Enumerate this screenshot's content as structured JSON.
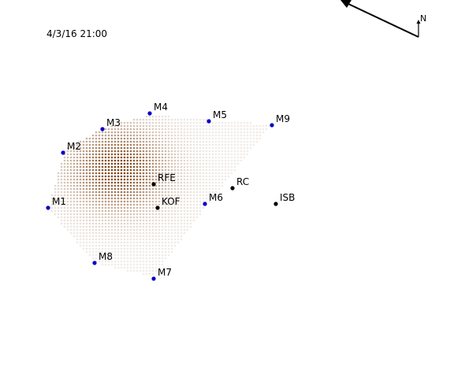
{
  "timestamp": "4/3/16 21:00",
  "north_label": "N",
  "colors": {
    "monitor": "#0000cc",
    "site": "#000000",
    "field_low": "#f1ebe6",
    "field_high": "#7a3f10"
  },
  "monitors": [
    {
      "id": "m1",
      "label": "M1"
    },
    {
      "id": "m2",
      "label": "M2"
    },
    {
      "id": "m3",
      "label": "M3"
    },
    {
      "id": "m4",
      "label": "M4"
    },
    {
      "id": "m5",
      "label": "M5"
    },
    {
      "id": "m6",
      "label": "M6"
    },
    {
      "id": "m7",
      "label": "M7"
    },
    {
      "id": "m8",
      "label": "M8"
    },
    {
      "id": "m9",
      "label": "M9"
    }
  ],
  "sites": [
    {
      "id": "rfe",
      "label": "RFE"
    },
    {
      "id": "kof",
      "label": "KOF"
    },
    {
      "id": "rc",
      "label": "RC"
    },
    {
      "id": "isb",
      "label": "ISB"
    }
  ]
}
